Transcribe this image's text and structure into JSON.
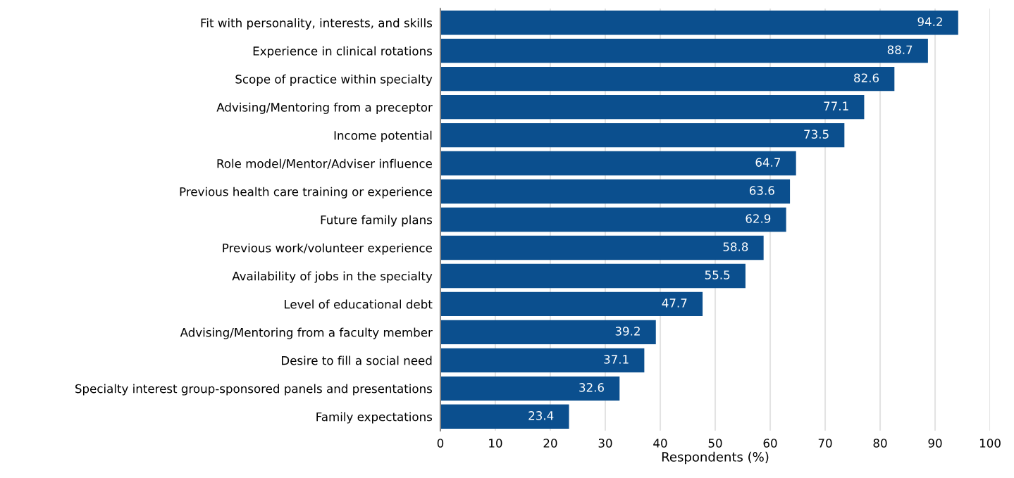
{
  "chart_data": {
    "type": "bar",
    "orientation": "horizontal",
    "xlabel": "Respondents (%)",
    "categories": [
      "Fit with personality, interests, and skills",
      "Experience in clinical rotations",
      "Scope of practice within specialty",
      "Advising/Mentoring from a preceptor",
      "Income potential",
      "Role model/Mentor/Adviser influence",
      "Previous health care training or experience",
      "Future family plans",
      "Previous work/volunteer experience",
      "Availability of jobs in the specialty",
      "Level of educational debt",
      "Advising/Mentoring from a faculty member",
      "Desire to fill a social need",
      "Specialty interest group-sponsored panels and presentations",
      "Family expectations"
    ],
    "values": [
      94.2,
      88.7,
      82.6,
      77.1,
      73.5,
      64.7,
      63.6,
      62.9,
      58.8,
      55.5,
      47.7,
      39.2,
      37.1,
      32.6,
      23.4
    ],
    "color": "#0b4f8e",
    "xlim": [
      0,
      100
    ],
    "xticks": [
      0,
      10,
      20,
      30,
      40,
      50,
      60,
      70,
      80,
      90,
      100
    ],
    "grid": "x",
    "legend": false,
    "data_labels": true
  }
}
